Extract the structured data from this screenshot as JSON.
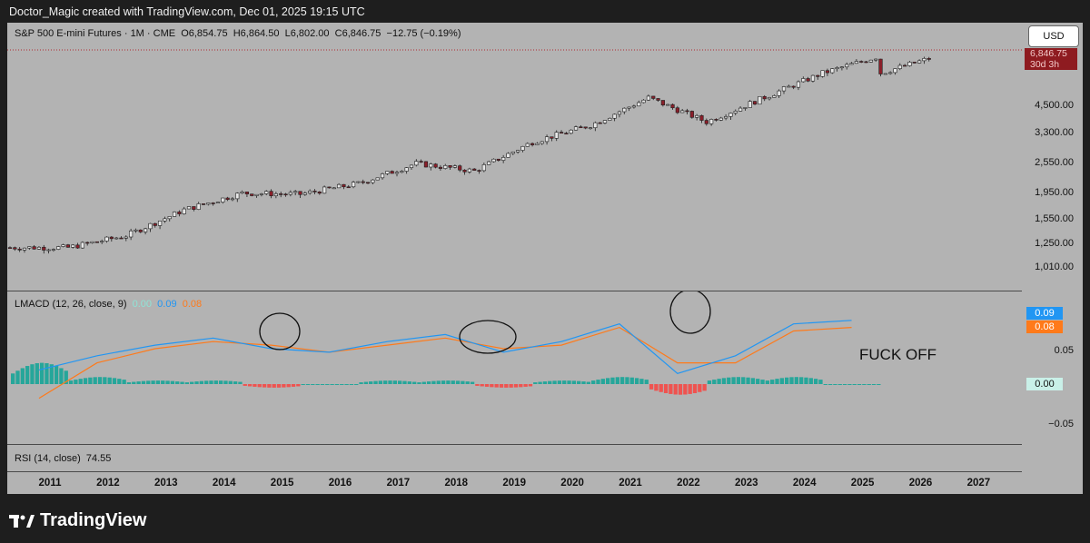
{
  "header": {
    "caption": "Doctor_Magic created with TradingView.com, Dec 01, 2025 19:15 UTC"
  },
  "symbol": {
    "name": "S&P 500 E-mini Futures · 1M · CME",
    "open": "O6,854.75",
    "high": "H6,864.50",
    "low": "L6,802.00",
    "close": "C6,846.75",
    "change": "−12.75 (−0.19%)"
  },
  "currency_button": "USD",
  "last_price_tag": {
    "price": "6,846.75",
    "countdown": "30d 3h"
  },
  "price_axis": [
    "4,500.00",
    "3,300.00",
    "2,550.00",
    "1,950.00",
    "1,550.00",
    "1,250.00",
    "1,010.00"
  ],
  "lmacd": {
    "name": "LMACD (12, 26, close, 9)",
    "values": [
      "0.00",
      "0.09",
      "0.08"
    ],
    "value_colors": [
      "#8fe3d6",
      "#2196f3",
      "#ff7a1a"
    ],
    "axis": [
      "0.05",
      "0.00",
      "−0.05"
    ],
    "badges": [
      "0.09",
      "0.08",
      "0.00"
    ]
  },
  "rsi": {
    "name": "RSI (14, close)",
    "value": "74.55"
  },
  "time_axis": [
    "2011",
    "2012",
    "2013",
    "2014",
    "2015",
    "2016",
    "2017",
    "2018",
    "2019",
    "2020",
    "2021",
    "2022",
    "2023",
    "2024",
    "2025",
    "2026",
    "2027"
  ],
  "annotation": "FUCK OFF",
  "brand": "TradingView",
  "colors": {
    "up": "#26a69a",
    "down": "#ef5350",
    "macd": "#2196f3",
    "signal": "#ff7a1a",
    "panel": "#b3b3b3",
    "background": "#1e1e1e"
  },
  "chart_data": {
    "type": "candlestick",
    "series": [
      {
        "name": "S&P 500 E-mini Futures",
        "x": [
          "2011",
          "2012",
          "2013",
          "2014",
          "2015",
          "2016",
          "2017",
          "2018",
          "2019",
          "2020",
          "2021",
          "2022",
          "2023",
          "2024",
          "2025"
        ],
        "y": [
          1280,
          1420,
          1780,
          2060,
          2040,
          2240,
          2670,
          2500,
          3220,
          3730,
          4740,
          3840,
          4760,
          5880,
          6846
        ]
      }
    ],
    "scale": "log",
    "ylim": [
      900,
      7200
    ],
    "macd_line": [
      0.02,
      0.04,
      0.055,
      0.065,
      0.05,
      0.045,
      0.06,
      0.07,
      0.045,
      0.06,
      0.085,
      0.015,
      0.04,
      0.085,
      0.09
    ],
    "signal_line": [
      -0.02,
      0.03,
      0.05,
      0.06,
      0.055,
      0.045,
      0.055,
      0.065,
      0.05,
      0.055,
      0.08,
      0.03,
      0.03,
      0.075,
      0.08
    ],
    "histogram": [
      0.03,
      0.01,
      0.005,
      0.005,
      -0.005,
      0.0,
      0.005,
      0.005,
      -0.005,
      0.005,
      0.01,
      -0.015,
      0.01,
      0.01,
      0.0
    ]
  }
}
